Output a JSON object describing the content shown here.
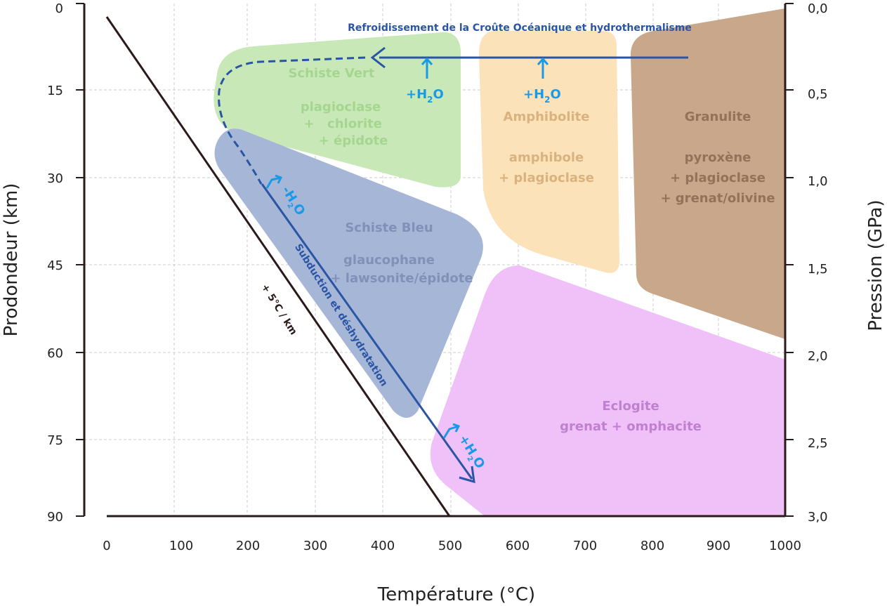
{
  "colors": {
    "schiste_vert": "#c8e8b8",
    "amphibolite": "#fbe2b9",
    "granulite": "#c9a78a",
    "schiste_bleu": "#a6b6d6",
    "eclogite": "#f0c0f8",
    "subduction_arrow": "#2a55a5",
    "water_arrow": "#1a9ae6",
    "axis": "#2b1a1a",
    "grid": "#cccccc"
  },
  "axes": {
    "xlabel": "Température (°C)",
    "ylabel_left": "Prodondeur (km)",
    "ylabel_right": "Pression (GPa)",
    "x_ticks": [
      "0",
      "100",
      "200",
      "300",
      "400",
      "500",
      "600",
      "700",
      "800",
      "900",
      "1000"
    ],
    "y_ticks_left": [
      "0",
      "15",
      "30",
      "45",
      "60",
      "75",
      "90"
    ],
    "y_ticks_right": [
      "0,0",
      "0,5",
      "1,0",
      "1,5",
      "2,0",
      "2,5",
      "3,0"
    ]
  },
  "facies": {
    "schiste_vert": {
      "name": "Schiste Vert",
      "line1": "plagioclase",
      "line2a": "+",
      "line2b": "chlorite",
      "line3": "+ épidote"
    },
    "amphibolite": {
      "name": "Amphibolite",
      "line1": "amphibole",
      "line2": "+ plagioclase"
    },
    "granulite": {
      "name": "Granulite",
      "line1": "pyroxène",
      "line2": "+ plagioclase",
      "line3": "+ grenat/olivine"
    },
    "schiste_bleu": {
      "name": "Schiste Bleu",
      "line1": "glaucophane",
      "line2": "+ lawsonite/épidote"
    },
    "eclogite": {
      "name": "Eclogite",
      "line1": "grenat + omphacite"
    }
  },
  "labels": {
    "cooling_title": "Refroidissement de la Croûte Océanique et hydrothermalisme",
    "subduction": "Subduction et déshydratation",
    "geotherm": "+ 5°C / km",
    "h2o_plus_main": "+H",
    "h2o_sub": "2",
    "h2o_o": "O",
    "h2o_minus_rot": "-H",
    "h2o_plus_rot": "+H"
  }
}
